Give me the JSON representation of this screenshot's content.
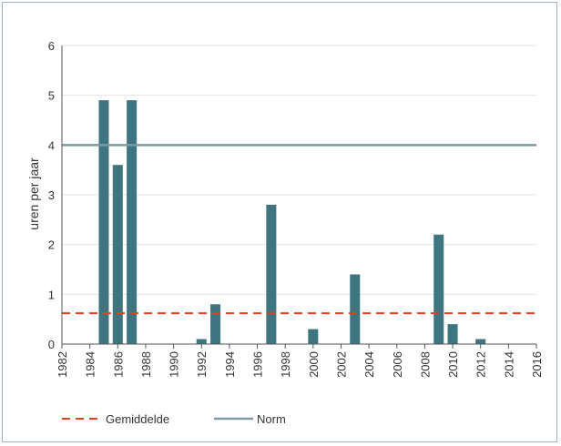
{
  "chart_data": {
    "type": "bar",
    "ylabel": "uren per jaar",
    "xlim": [
      1982,
      2016
    ],
    "ylim": [
      0,
      6
    ],
    "x_ticks": [
      "1982",
      "1984",
      "1986",
      "1988",
      "1990",
      "1992",
      "1994",
      "1996",
      "1998",
      "2000",
      "2002",
      "2004",
      "2006",
      "2008",
      "2010",
      "2012",
      "2014",
      "2016"
    ],
    "y_ticks": [
      "0",
      "1",
      "2",
      "3",
      "4",
      "5",
      "6"
    ],
    "grid": "horizontal",
    "bar_color": "#3e7580",
    "x": [
      1985,
      1986,
      1987,
      1992,
      1993,
      1997,
      2000,
      2003,
      2009,
      2010,
      2012
    ],
    "values": [
      4.9,
      3.6,
      4.9,
      0.1,
      0.8,
      2.8,
      0.3,
      1.4,
      2.2,
      0.4,
      0.1
    ],
    "reference_lines": [
      {
        "name": "Gemiddelde",
        "value": 0.62,
        "style": "dashed",
        "color": "#e8401c"
      },
      {
        "name": "Norm",
        "value": 4.0,
        "style": "solid",
        "color": "#7d9aa4"
      }
    ],
    "legend": {
      "placement": "bottom-left",
      "items": [
        {
          "label": "Gemiddelde",
          "style": "dashed",
          "color": "#e8401c"
        },
        {
          "label": "Norm",
          "style": "solid",
          "color": "#7d9aa4"
        }
      ]
    }
  }
}
